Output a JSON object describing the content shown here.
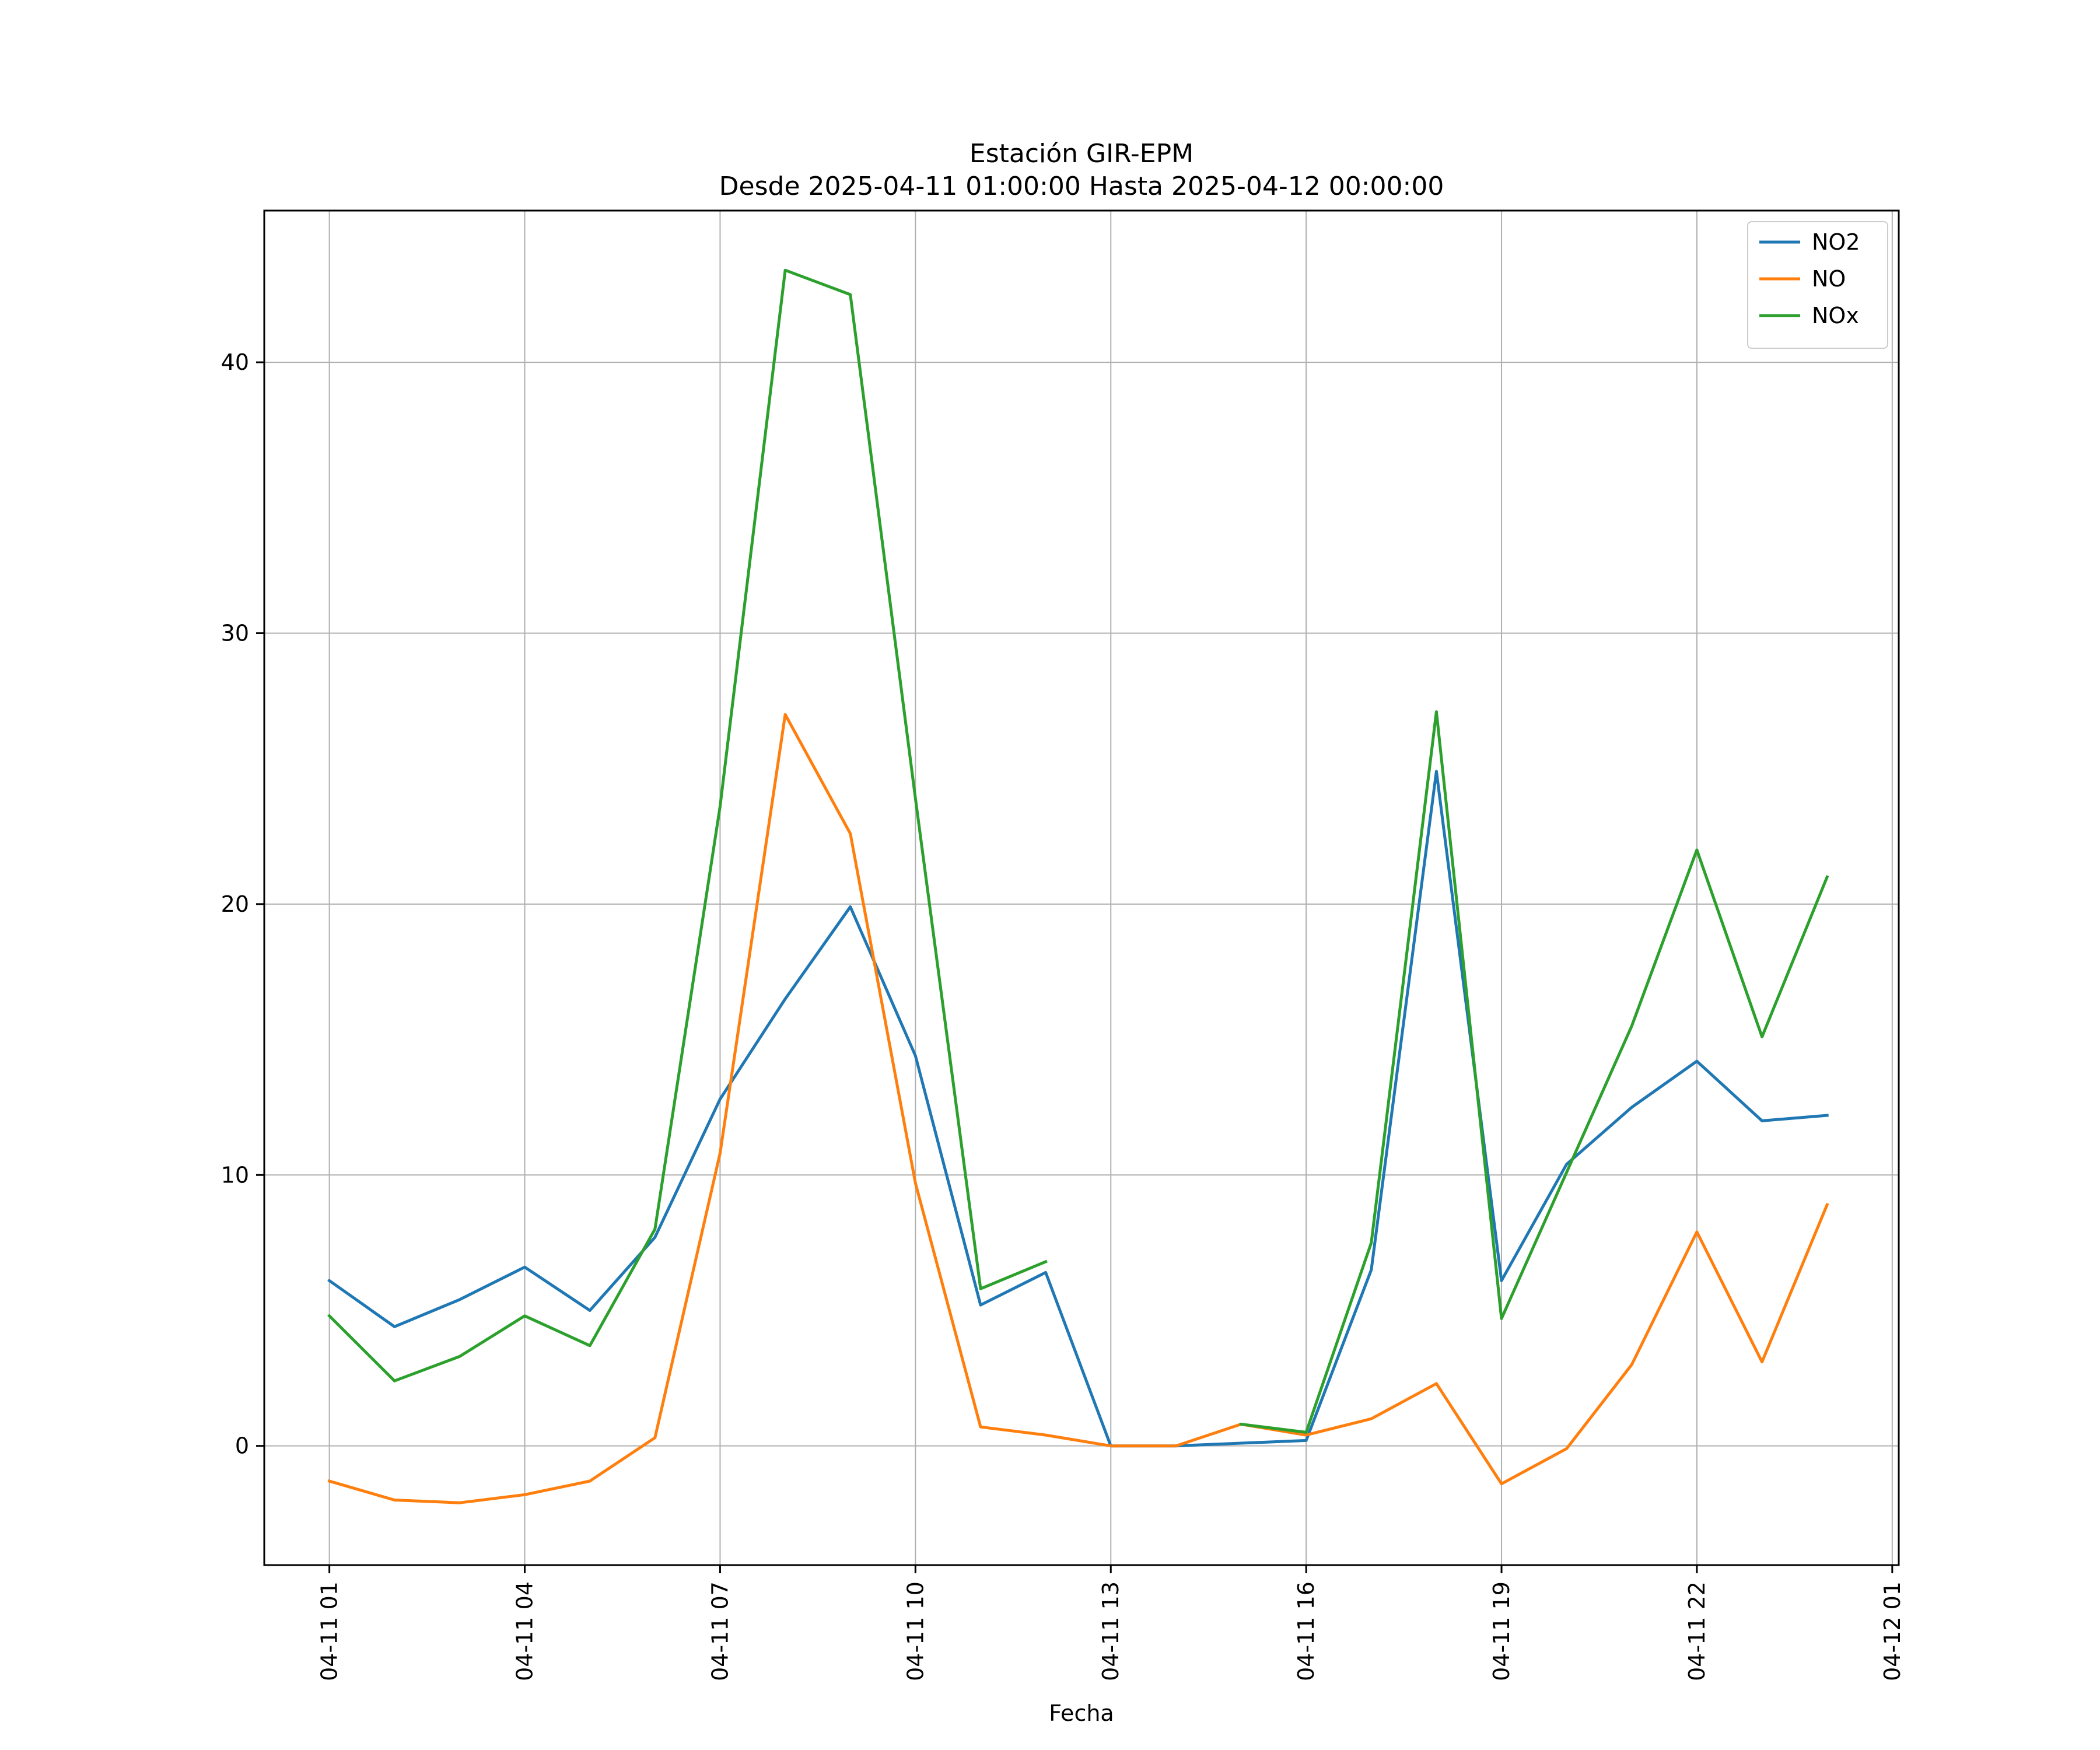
{
  "chart_data": {
    "type": "line",
    "title": "Estación GIR-EPM",
    "subtitle": "Desde 2025-04-11 01:00:00 Hasta 2025-04-12 00:00:00",
    "xlabel": "Fecha",
    "ylabel": "",
    "x": [
      "2025-04-11 01:00",
      "2025-04-11 02:00",
      "2025-04-11 03:00",
      "2025-04-11 04:00",
      "2025-04-11 05:00",
      "2025-04-11 06:00",
      "2025-04-11 07:00",
      "2025-04-11 08:00",
      "2025-04-11 09:00",
      "2025-04-11 10:00",
      "2025-04-11 11:00",
      "2025-04-11 12:00",
      "2025-04-11 13:00",
      "2025-04-11 14:00",
      "2025-04-11 15:00",
      "2025-04-11 16:00",
      "2025-04-11 17:00",
      "2025-04-11 18:00",
      "2025-04-11 19:00",
      "2025-04-11 20:00",
      "2025-04-11 21:00",
      "2025-04-11 22:00",
      "2025-04-11 23:00",
      "2025-04-12 00:00"
    ],
    "x_ticks": [
      "04-11 01",
      "04-11 04",
      "04-11 07",
      "04-11 10",
      "04-11 13",
      "04-11 16",
      "04-11 19",
      "04-11 22",
      "04-12 01"
    ],
    "y_ticks": [
      0,
      10,
      20,
      30,
      40
    ],
    "xlim": [
      "2025-04-11 00:00:00",
      "2025-04-12 01:06:00"
    ],
    "ylim": [
      -4.4,
      45.6
    ],
    "grid": true,
    "legend_position": "top-right",
    "series": [
      {
        "name": "NO2",
        "color": "#1f77b4",
        "values": [
          6.1,
          4.4,
          5.4,
          6.6,
          5.0,
          7.7,
          12.8,
          16.5,
          19.9,
          14.4,
          5.2,
          6.4,
          0.0,
          0.0,
          0.1,
          0.2,
          6.5,
          24.9,
          6.1,
          10.4,
          12.5,
          14.2,
          12.0,
          12.2
        ]
      },
      {
        "name": "NO",
        "color": "#ff7f0e",
        "values": [
          -1.3,
          -2.0,
          -2.1,
          -1.8,
          -1.3,
          0.3,
          10.8,
          27.0,
          22.6,
          9.7,
          0.7,
          0.4,
          0.0,
          0.0,
          0.8,
          0.4,
          1.0,
          2.3,
          -1.4,
          -0.1,
          3.0,
          7.9,
          3.1,
          8.9
        ]
      },
      {
        "name": "NOx",
        "color": "#2ca02c",
        "values": [
          4.8,
          2.4,
          3.3,
          4.8,
          3.7,
          8.0,
          23.6,
          43.4,
          42.5,
          23.9,
          5.8,
          6.8,
          null,
          null,
          0.8,
          0.5,
          7.5,
          27.1,
          4.7,
          10.1,
          15.5,
          22.0,
          15.1,
          21.0
        ]
      }
    ]
  }
}
